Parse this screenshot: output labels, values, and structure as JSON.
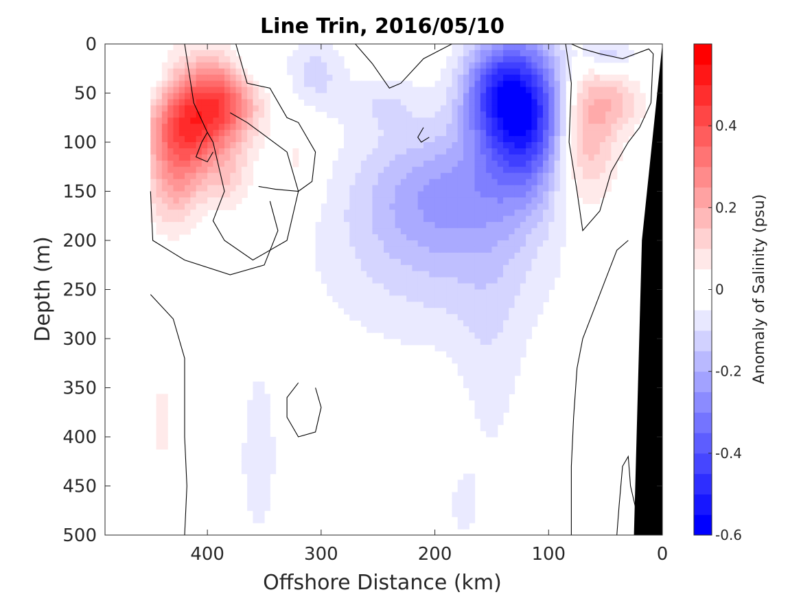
{
  "chart_data": {
    "type": "heatmap",
    "title": "Line Trin, 2016/05/10",
    "xlabel": "Offshore Distance (km)",
    "ylabel": "Depth (m)",
    "xlim": [
      490,
      0
    ],
    "ylim": [
      0,
      500
    ],
    "y_reversed": true,
    "x_reversed": true,
    "xticks": [
      400,
      300,
      200,
      100,
      0
    ],
    "yticks": [
      0,
      50,
      100,
      150,
      200,
      250,
      300,
      350,
      400,
      450,
      500
    ],
    "colorbar": {
      "label": "Anomaly of Salinity (psu)",
      "range": [
        -0.6,
        0.6
      ],
      "step": 0.05,
      "ticks": [
        -0.6,
        -0.4,
        -0.2,
        0,
        0.2,
        0.4
      ],
      "tick_labels": [
        "-0.6",
        "-0.4",
        "-0.2",
        "0",
        "0.2",
        "0.4"
      ],
      "negative_color": "#0000ff",
      "positive_color": "#ff0000",
      "neutral_color": "#ffffff"
    },
    "data_extent_x": [
      450,
      0
    ],
    "zero_contour_color": "#000000",
    "bathymetry_color": "#000000",
    "bathymetry": [
      [
        0,
        0
      ],
      [
        18,
        200
      ],
      [
        25,
        500
      ],
      [
        0,
        500
      ]
    ],
    "features": [
      {
        "x": 420,
        "y": 85,
        "rx": 32,
        "ry": 55,
        "value": 0.45
      },
      {
        "x": 385,
        "y": 60,
        "rx": 30,
        "ry": 45,
        "value": 0.35
      },
      {
        "x": 430,
        "y": 150,
        "rx": 22,
        "ry": 45,
        "value": 0.14
      },
      {
        "x": 380,
        "y": 140,
        "rx": 20,
        "ry": 30,
        "value": 0.1
      },
      {
        "x": 445,
        "y": 40,
        "rx": 15,
        "ry": 30,
        "value": -0.08
      },
      {
        "x": 360,
        "y": 20,
        "rx": 20,
        "ry": 25,
        "value": -0.1
      },
      {
        "x": 305,
        "y": 30,
        "rx": 25,
        "ry": 40,
        "value": -0.12
      },
      {
        "x": 320,
        "y": 120,
        "rx": 20,
        "ry": 50,
        "value": 0.07
      },
      {
        "x": 245,
        "y": 60,
        "rx": 35,
        "ry": 30,
        "value": -0.08
      },
      {
        "x": 120,
        "y": 70,
        "rx": 38,
        "ry": 75,
        "value": -0.55
      },
      {
        "x": 150,
        "y": 45,
        "rx": 30,
        "ry": 50,
        "value": -0.25
      },
      {
        "x": 190,
        "y": 150,
        "rx": 80,
        "ry": 70,
        "value": -0.22
      },
      {
        "x": 200,
        "y": 230,
        "rx": 110,
        "ry": 90,
        "value": -0.1
      },
      {
        "x": 150,
        "y": 330,
        "rx": 30,
        "ry": 140,
        "value": -0.06
      },
      {
        "x": 355,
        "y": 420,
        "rx": 22,
        "ry": 120,
        "value": -0.07
      },
      {
        "x": 175,
        "y": 470,
        "rx": 15,
        "ry": 40,
        "value": -0.06
      },
      {
        "x": 70,
        "y": 90,
        "rx": 28,
        "ry": 75,
        "value": 0.25
      },
      {
        "x": 40,
        "y": 60,
        "rx": 25,
        "ry": 30,
        "value": 0.12
      },
      {
        "x": 50,
        "y": 10,
        "rx": 25,
        "ry": 18,
        "value": -0.15
      },
      {
        "x": 440,
        "y": 385,
        "rx": 10,
        "ry": 50,
        "value": 0.07
      },
      {
        "x": 210,
        "y": 95,
        "rx": 18,
        "ry": 25,
        "value": 0.0
      }
    ],
    "contours": [
      {
        "points": [
          [
            420,
            0
          ],
          [
            412,
            60
          ],
          [
            400,
            90
          ],
          [
            395,
            100
          ],
          [
            385,
            150
          ],
          [
            395,
            180
          ],
          [
            385,
            200
          ],
          [
            360,
            220
          ],
          [
            330,
            200
          ],
          [
            320,
            150
          ],
          [
            330,
            110
          ],
          [
            365,
            80
          ],
          [
            380,
            70
          ]
        ]
      },
      {
        "points": [
          [
            450,
            150
          ],
          [
            448,
            200
          ],
          [
            420,
            220
          ],
          [
            380,
            235
          ],
          [
            350,
            225
          ],
          [
            338,
            190
          ],
          [
            345,
            160
          ]
        ]
      },
      {
        "points": [
          [
            375,
            0
          ],
          [
            365,
            40
          ],
          [
            345,
            45
          ],
          [
            330,
            75
          ],
          [
            320,
            80
          ],
          [
            305,
            110
          ],
          [
            308,
            140
          ],
          [
            320,
            150
          ],
          [
            340,
            148
          ],
          [
            355,
            145
          ]
        ]
      },
      {
        "points": [
          [
            270,
            0
          ],
          [
            255,
            20
          ],
          [
            240,
            45
          ],
          [
            230,
            40
          ],
          [
            210,
            15
          ],
          [
            185,
            0
          ]
        ]
      },
      {
        "points": [
          [
            85,
            0
          ],
          [
            80,
            40
          ],
          [
            82,
            100
          ],
          [
            75,
            150
          ],
          [
            70,
            190
          ],
          [
            55,
            170
          ],
          [
            45,
            130
          ],
          [
            30,
            100
          ],
          [
            20,
            85
          ],
          [
            10,
            60
          ],
          [
            8,
            10
          ],
          [
            12,
            5
          ],
          [
            35,
            15
          ],
          [
            55,
            10
          ],
          [
            70,
            5
          ],
          [
            80,
            0
          ]
        ]
      },
      {
        "points": [
          [
            450,
            255
          ],
          [
            430,
            280
          ],
          [
            420,
            320
          ],
          [
            420,
            400
          ],
          [
            418,
            450
          ],
          [
            420,
            500
          ]
        ]
      },
      {
        "points": [
          [
            320,
            345
          ],
          [
            330,
            360
          ],
          [
            330,
            380
          ],
          [
            320,
            400
          ],
          [
            305,
            395
          ],
          [
            300,
            370
          ],
          [
            305,
            350
          ]
        ]
      },
      {
        "points": [
          [
            80,
            500
          ],
          [
            80,
            430
          ],
          [
            78,
            380
          ],
          [
            75,
            330
          ],
          [
            70,
            300
          ],
          [
            60,
            270
          ],
          [
            50,
            240
          ],
          [
            40,
            210
          ],
          [
            30,
            200
          ]
        ]
      },
      {
        "points": [
          [
            40,
            500
          ],
          [
            38,
            470
          ],
          [
            35,
            430
          ],
          [
            30,
            420
          ],
          [
            28,
            450
          ],
          [
            22,
            480
          ]
        ]
      },
      {
        "points": [
          [
            210,
            85
          ],
          [
            215,
            95
          ],
          [
            212,
            100
          ],
          [
            205,
            95
          ]
        ]
      },
      {
        "points": [
          [
            400,
            90
          ],
          [
            405,
            100
          ],
          [
            410,
            115
          ],
          [
            400,
            120
          ],
          [
            395,
            110
          ]
        ]
      }
    ]
  }
}
